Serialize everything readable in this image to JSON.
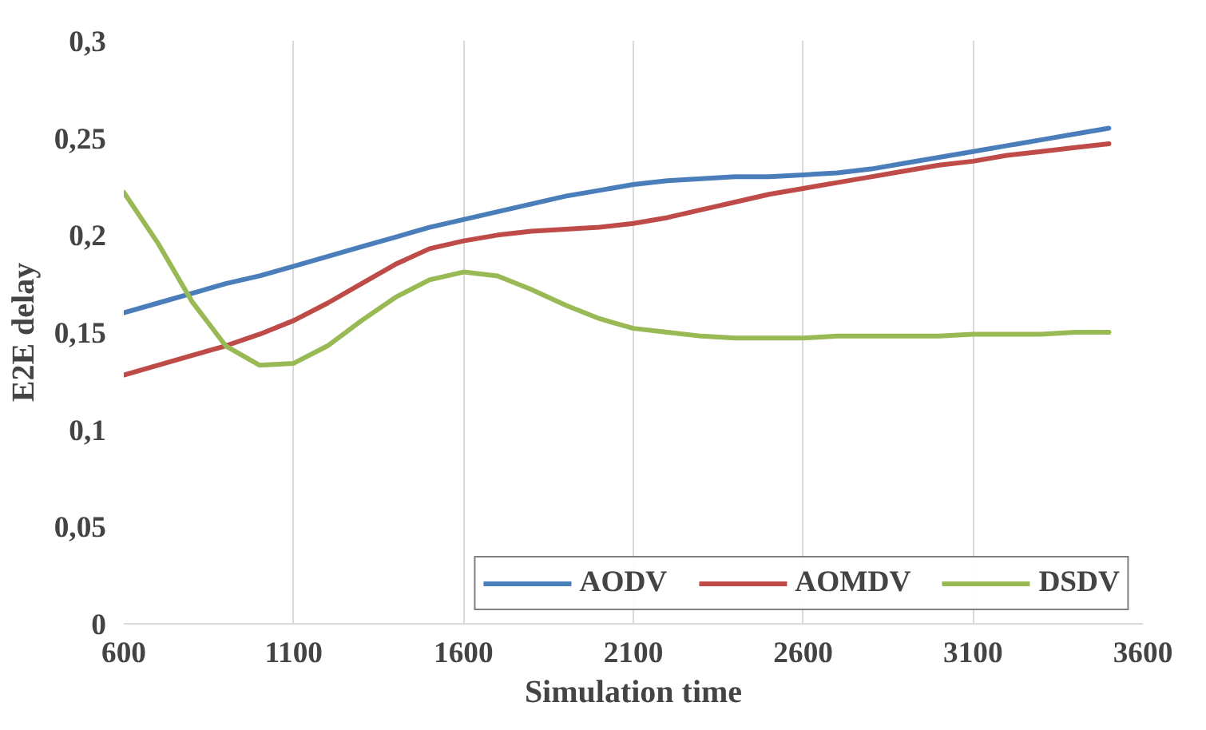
{
  "chart_data": {
    "type": "line",
    "xlabel": "Simulation time",
    "ylabel": "E2E delay",
    "x": [
      600,
      700,
      800,
      900,
      1000,
      1100,
      1200,
      1300,
      1400,
      1500,
      1600,
      1700,
      1800,
      1900,
      2000,
      2100,
      2200,
      2300,
      2400,
      2500,
      2600,
      2700,
      2800,
      2900,
      3000,
      3100,
      3200,
      3300,
      3400,
      3500
    ],
    "series": [
      {
        "name": "AODV",
        "color": "#4a7ebb",
        "values": [
          0.16,
          0.165,
          0.17,
          0.175,
          0.179,
          0.184,
          0.189,
          0.194,
          0.199,
          0.204,
          0.208,
          0.212,
          0.216,
          0.22,
          0.223,
          0.226,
          0.228,
          0.229,
          0.23,
          0.23,
          0.231,
          0.232,
          0.234,
          0.237,
          0.24,
          0.243,
          0.246,
          0.249,
          0.252,
          0.255
        ]
      },
      {
        "name": "AOMDV",
        "color": "#be4b48",
        "values": [
          0.128,
          0.133,
          0.138,
          0.143,
          0.149,
          0.156,
          0.165,
          0.175,
          0.185,
          0.193,
          0.197,
          0.2,
          0.202,
          0.203,
          0.204,
          0.206,
          0.209,
          0.213,
          0.217,
          0.221,
          0.224,
          0.227,
          0.23,
          0.233,
          0.236,
          0.238,
          0.241,
          0.243,
          0.245,
          0.247
        ]
      },
      {
        "name": "DSDV",
        "color": "#98b954",
        "values": [
          0.222,
          0.196,
          0.166,
          0.143,
          0.133,
          0.134,
          0.143,
          0.156,
          0.168,
          0.177,
          0.181,
          0.179,
          0.172,
          0.164,
          0.157,
          0.152,
          0.15,
          0.148,
          0.147,
          0.147,
          0.147,
          0.148,
          0.148,
          0.148,
          0.148,
          0.149,
          0.149,
          0.149,
          0.15,
          0.15
        ]
      }
    ],
    "xlim": [
      600,
      3600
    ],
    "xticks": [
      600,
      1100,
      1600,
      2100,
      2600,
      3100,
      3600
    ],
    "ylim": [
      0,
      0.3
    ],
    "yticks": [
      0,
      {
        "value": 0.05,
        "label": "0,05"
      },
      {
        "value": 0.1,
        "label": "0,1"
      },
      {
        "value": 0.15,
        "label": "0,15"
      },
      {
        "value": 0.2,
        "label": "0,2"
      },
      {
        "value": 0.25,
        "label": "0,25"
      },
      {
        "value": 0.3,
        "label": "0,3"
      }
    ],
    "grid": "x",
    "legend": "bottom right",
    "marker": "none",
    "line_style": "solid"
  }
}
